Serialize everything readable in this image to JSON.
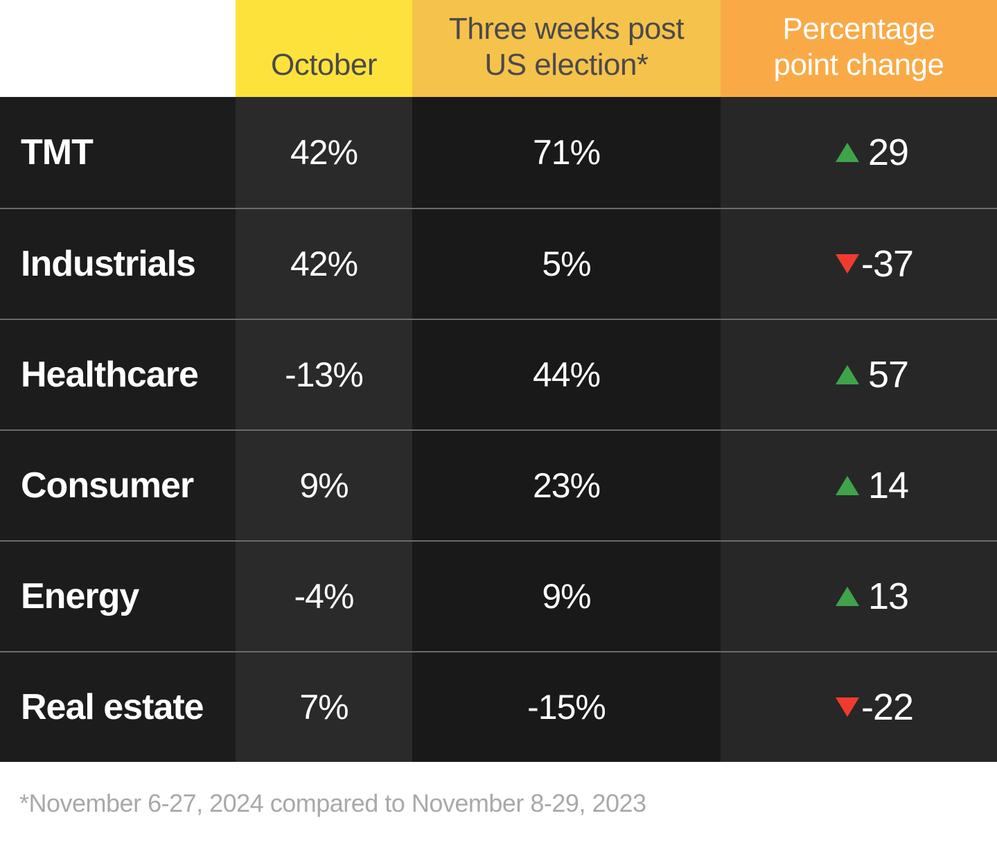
{
  "table": {
    "headers": {
      "october": "October",
      "post_election": "Three weeks post\nUS election*",
      "pct_change": "Percentage\npoint change"
    },
    "rows": [
      {
        "label": "TMT",
        "october": "42%",
        "post_election": "71%",
        "change": "29",
        "direction": "up"
      },
      {
        "label": "Industrials",
        "october": "42%",
        "post_election": "5%",
        "change": "-37",
        "direction": "down"
      },
      {
        "label": "Healthcare",
        "october": "-13%",
        "post_election": "44%",
        "change": "57",
        "direction": "up"
      },
      {
        "label": "Consumer",
        "october": "9%",
        "post_election": "23%",
        "change": "14",
        "direction": "up"
      },
      {
        "label": "Energy",
        "october": "-4%",
        "post_election": "9%",
        "change": "13",
        "direction": "up"
      },
      {
        "label": "Real estate",
        "october": "7%",
        "post_election": "-15%",
        "change": "-22",
        "direction": "down"
      }
    ]
  },
  "footnote": "*November 6-27, 2024 compared to November 8-29, 2023",
  "colors": {
    "header_october_bg": "#FEE23C",
    "header_post_election_bg": "#F5C24B",
    "header_pct_change_bg": "#F9AA47",
    "header_text_dark": "#4A4A4A",
    "positive_green": "#3FA34A",
    "negative_red": "#EF3B2F",
    "row_text": "#FFFFFF",
    "footnote_text": "#A9A9A9"
  },
  "chart_data": {
    "type": "table",
    "categories": [
      "TMT",
      "Industrials",
      "Healthcare",
      "Consumer",
      "Energy",
      "Real estate"
    ],
    "series": [
      {
        "name": "October",
        "unit": "%",
        "values": [
          42,
          42,
          -13,
          9,
          -4,
          7
        ]
      },
      {
        "name": "Three weeks post US election*",
        "unit": "%",
        "values": [
          71,
          5,
          44,
          23,
          9,
          -15
        ]
      },
      {
        "name": "Percentage point change",
        "unit": "pp",
        "values": [
          29,
          -37,
          57,
          14,
          13,
          -22
        ]
      }
    ],
    "footnote": "*November 6-27, 2024 compared to November 8-29, 2023"
  }
}
